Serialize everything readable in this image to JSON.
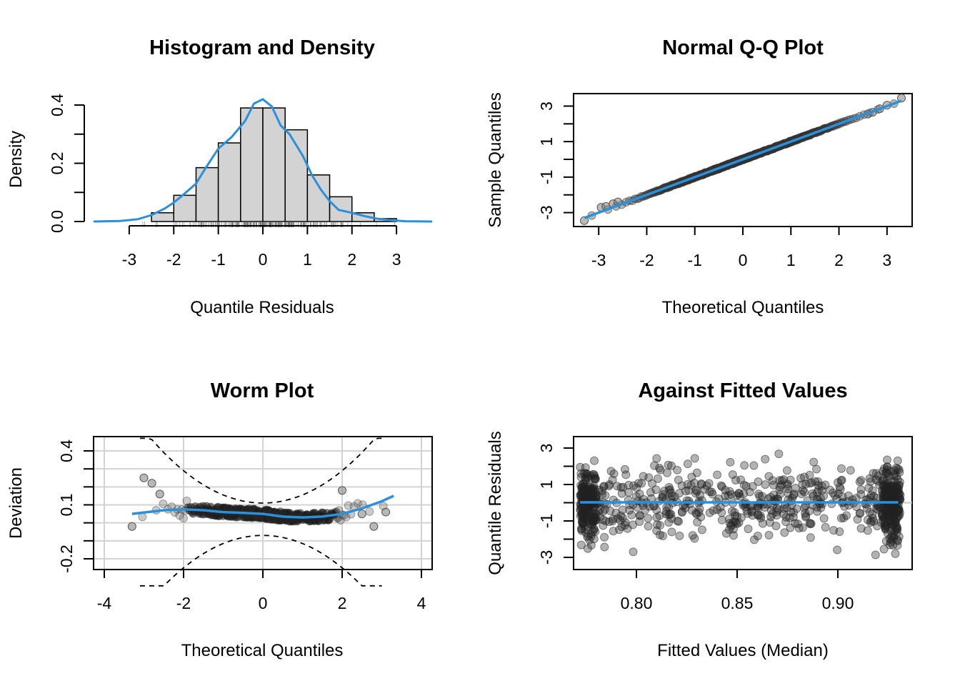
{
  "chart_data": [
    {
      "type": "bar",
      "title": "Histogram and Density",
      "xlabel": "Quantile Residuals",
      "ylabel": "Density",
      "xlim": [
        -3.8,
        3.8
      ],
      "ylim": [
        0,
        0.42
      ],
      "x_ticks": [
        "-3",
        "-2",
        "-1",
        "0",
        "1",
        "2",
        "3"
      ],
      "y_ticks": [
        "0.0",
        "0.2",
        "0.4"
      ],
      "bins": [
        {
          "from": -2.5,
          "to": -2.0,
          "density": 0.03
        },
        {
          "from": -2.0,
          "to": -1.5,
          "density": 0.09
        },
        {
          "from": -1.5,
          "to": -1.0,
          "density": 0.185
        },
        {
          "from": -1.0,
          "to": -0.5,
          "density": 0.27
        },
        {
          "from": -0.5,
          "to": 0.0,
          "density": 0.39
        },
        {
          "from": 0.0,
          "to": 0.5,
          "density": 0.39
        },
        {
          "from": 0.5,
          "to": 1.0,
          "density": 0.315
        },
        {
          "from": 1.0,
          "to": 1.5,
          "density": 0.16
        },
        {
          "from": 1.5,
          "to": 2.0,
          "density": 0.085
        },
        {
          "from": 2.0,
          "to": 2.5,
          "density": 0.03
        },
        {
          "from": 2.5,
          "to": 3.0,
          "density": 0.01
        }
      ],
      "density_curve": {
        "x": [
          -3.8,
          -3.2,
          -2.8,
          -2.5,
          -2.2,
          -2.0,
          -1.8,
          -1.5,
          -1.3,
          -1.0,
          -0.7,
          -0.4,
          -0.2,
          0.0,
          0.2,
          0.4,
          0.6,
          0.9,
          1.1,
          1.3,
          1.5,
          1.7,
          2.0,
          2.3,
          2.6,
          2.9,
          3.2,
          3.8
        ],
        "y": [
          0.0,
          0.002,
          0.008,
          0.022,
          0.045,
          0.065,
          0.09,
          0.13,
          0.18,
          0.25,
          0.29,
          0.345,
          0.405,
          0.42,
          0.395,
          0.33,
          0.3,
          0.225,
          0.16,
          0.11,
          0.07,
          0.04,
          0.03,
          0.018,
          0.009,
          0.004,
          0.001,
          0.0
        ],
        "color": "#2b90d9"
      },
      "rug": true
    },
    {
      "type": "scatter",
      "title": "Normal Q-Q Plot",
      "xlabel": "Theoretical Quantiles",
      "ylabel": "Sample Quantiles",
      "xlim": [
        -3.45,
        3.5
      ],
      "ylim": [
        -3.35,
        3.45
      ],
      "x_ticks": [
        "-3",
        "-2",
        "-1",
        "0",
        "1",
        "2",
        "3"
      ],
      "y_ticks": [
        "-3",
        "-1",
        "1",
        "3"
      ],
      "reference_line": {
        "from": [
          -3.3,
          -3.3
        ],
        "to": [
          3.3,
          3.3
        ],
        "color": "#2b90d9"
      },
      "points": {
        "description": "approximately 1000 points lying on the identity line",
        "tail_low": [
          [
            -3.3,
            -3.5
          ],
          [
            -2.95,
            -2.7
          ],
          [
            -2.85,
            -2.65
          ],
          [
            -2.7,
            -2.5
          ],
          [
            -2.6,
            -2.4
          ]
        ],
        "tail_high": [
          [
            2.6,
            2.55
          ],
          [
            2.7,
            2.65
          ],
          [
            2.85,
            2.85
          ],
          [
            3.0,
            3.05
          ],
          [
            3.3,
            3.5
          ]
        ]
      }
    },
    {
      "type": "scatter",
      "title": "Worm Plot",
      "xlabel": "Theoretical Quantiles",
      "ylabel": "Deviation",
      "xlim": [
        -4.3,
        4.3
      ],
      "ylim": [
        -0.35,
        0.47
      ],
      "x_ticks": [
        "-4",
        "-2",
        "0",
        "2",
        "4"
      ],
      "y_ticks": [
        "-0.2",
        "0.1",
        "0.4"
      ],
      "grid": true,
      "fitted_curve": {
        "x": [
          -3.3,
          -2.5,
          -2.0,
          -1.5,
          -1.0,
          -0.5,
          0.0,
          0.5,
          1.0,
          1.5,
          2.0,
          2.5,
          3.0,
          3.3
        ],
        "y": [
          0.05,
          0.07,
          0.075,
          0.07,
          0.06,
          0.055,
          0.05,
          0.035,
          0.03,
          0.035,
          0.05,
          0.08,
          0.12,
          0.15
        ],
        "color": "#2b90d9"
      },
      "confidence_bands": "dashed, about -0.03 at 0 widening toward the tails"
    },
    {
      "type": "scatter",
      "title": "Against Fitted Values",
      "xlabel": "Fitted Values (Median)",
      "ylabel": "Quantile Residuals",
      "xlim": [
        0.7625,
        0.9335
      ],
      "ylim": [
        -3.7,
        3.7
      ],
      "x_ticks": [
        "0.80",
        "0.85",
        "0.90"
      ],
      "y_ticks": [
        "-3",
        "-1",
        "1",
        "3"
      ],
      "smooth_line": {
        "x": [
          0.772,
          0.93
        ],
        "y": [
          0.02,
          0.02
        ],
        "color": "#2b90d9"
      },
      "points": "approximately 1000 points, residuals roughly N(0,1), denser near x = 0.775 and x = 0.93"
    }
  ]
}
